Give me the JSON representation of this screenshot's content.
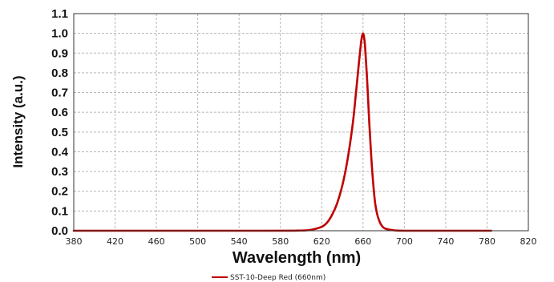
{
  "chart_data": {
    "type": "line",
    "xlabel": "Wavelength (nm)",
    "ylabel": "Intensity (a.u.)",
    "xlim": [
      380,
      820
    ],
    "ylim": [
      0.0,
      1.1
    ],
    "x_ticks": [
      "380",
      "420",
      "460",
      "500",
      "540",
      "580",
      "620",
      "660",
      "700",
      "740",
      "780",
      "820"
    ],
    "y_ticks": [
      "0.0",
      "0.1",
      "0.2",
      "0.3",
      "0.4",
      "0.5",
      "0.6",
      "0.7",
      "0.8",
      "0.9",
      "1.0",
      "1.1"
    ],
    "grid": true,
    "legend_position": "bottom-center",
    "series": [
      {
        "name": "SST-10-Deep Red (660nm)",
        "color": "#c00000",
        "x": [
          380,
          560,
          600,
          610,
          620,
          625,
          630,
          635,
          640,
          645,
          650,
          653,
          656,
          658,
          659,
          660,
          661,
          662,
          664,
          666,
          668,
          670,
          672,
          675,
          680,
          690,
          700,
          720,
          784
        ],
        "y": [
          0.0,
          0.0,
          0.001,
          0.005,
          0.02,
          0.04,
          0.08,
          0.14,
          0.23,
          0.36,
          0.54,
          0.69,
          0.85,
          0.95,
          0.985,
          1.0,
          0.98,
          0.93,
          0.76,
          0.55,
          0.37,
          0.23,
          0.13,
          0.06,
          0.015,
          0.002,
          0.0,
          0.0,
          0.0
        ]
      }
    ]
  }
}
